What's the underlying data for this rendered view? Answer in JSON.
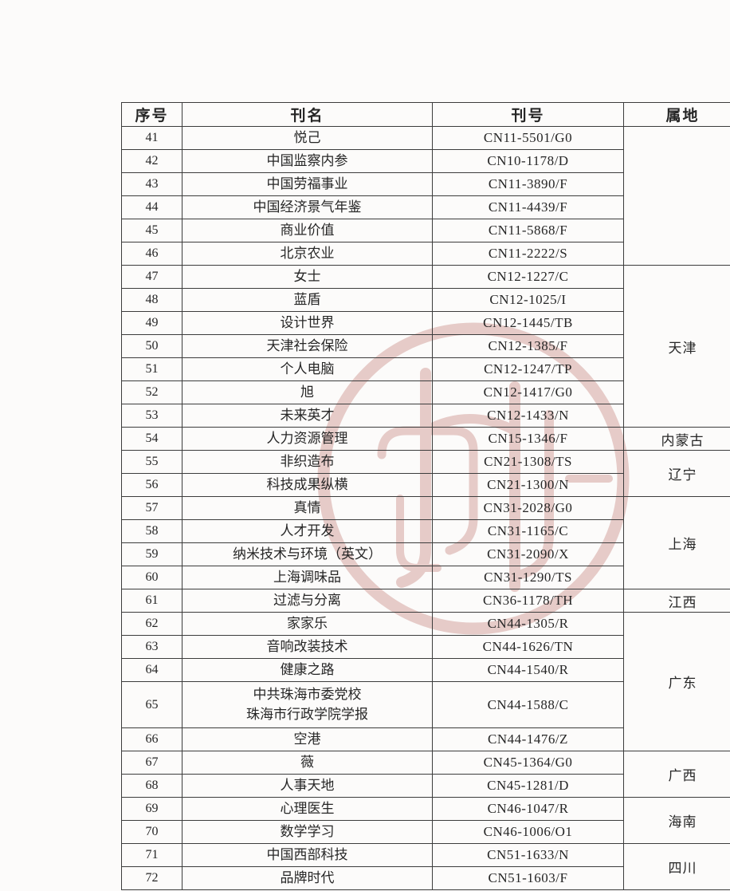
{
  "watermark": {
    "description": "faint red circular seal watermark",
    "color": "#a8463c"
  },
  "table": {
    "headers": [
      "序号",
      "刊名",
      "刊号",
      "属地"
    ],
    "region_groups": [
      {
        "label": "",
        "span": 6
      },
      {
        "label": "天津",
        "span": 7
      },
      {
        "label": "内蒙古",
        "span": 1
      },
      {
        "label": "辽宁",
        "span": 2
      },
      {
        "label": "上海",
        "span": 4
      },
      {
        "label": "江西",
        "span": 1
      },
      {
        "label": "广东",
        "span": 5
      },
      {
        "label": "广西",
        "span": 2
      },
      {
        "label": "海南",
        "span": 2
      },
      {
        "label": "四川",
        "span": 2
      }
    ],
    "rows": [
      {
        "no": "41",
        "name": "悦己",
        "code": "CN11-5501/G0",
        "group": 0
      },
      {
        "no": "42",
        "name": "中国监察内参",
        "code": "CN10-1178/D",
        "group": 0
      },
      {
        "no": "43",
        "name": "中国劳福事业",
        "code": "CN11-3890/F",
        "group": 0
      },
      {
        "no": "44",
        "name": "中国经济景气年鉴",
        "code": "CN11-4439/F",
        "group": 0
      },
      {
        "no": "45",
        "name": "商业价值",
        "code": "CN11-5868/F",
        "group": 0
      },
      {
        "no": "46",
        "name": "北京农业",
        "code": "CN11-2222/S",
        "group": 0
      },
      {
        "no": "47",
        "name": "女士",
        "code": "CN12-1227/C",
        "group": 1
      },
      {
        "no": "48",
        "name": "蓝盾",
        "code": "CN12-1025/I",
        "group": 1
      },
      {
        "no": "49",
        "name": "设计世界",
        "code": "CN12-1445/TB",
        "group": 1
      },
      {
        "no": "50",
        "name": "天津社会保险",
        "code": "CN12-1385/F",
        "group": 1
      },
      {
        "no": "51",
        "name": "个人电脑",
        "code": "CN12-1247/TP",
        "group": 1
      },
      {
        "no": "52",
        "name": "旭",
        "code": "CN12-1417/G0",
        "group": 1
      },
      {
        "no": "53",
        "name": "未来英才",
        "code": "CN12-1433/N",
        "group": 1
      },
      {
        "no": "54",
        "name": "人力资源管理",
        "code": "CN15-1346/F",
        "group": 2
      },
      {
        "no": "55",
        "name": "非织造布",
        "code": "CN21-1308/TS",
        "group": 3
      },
      {
        "no": "56",
        "name": "科技成果纵横",
        "code": "CN21-1300/N",
        "group": 3
      },
      {
        "no": "57",
        "name": "真情",
        "code": "CN31-2028/G0",
        "group": 4
      },
      {
        "no": "58",
        "name": "人才开发",
        "code": "CN31-1165/C",
        "group": 4
      },
      {
        "no": "59",
        "name": "纳米技术与环境（英文）",
        "code": "CN31-2090/X",
        "group": 4
      },
      {
        "no": "60",
        "name": "上海调味品",
        "code": "CN31-1290/TS",
        "group": 4
      },
      {
        "no": "61",
        "name": "过滤与分离",
        "code": "CN36-1178/TH",
        "group": 5
      },
      {
        "no": "62",
        "name": "家家乐",
        "code": "CN44-1305/R",
        "group": 6
      },
      {
        "no": "63",
        "name": "音响改装技术",
        "code": "CN44-1626/TN",
        "group": 6
      },
      {
        "no": "64",
        "name": "健康之路",
        "code": "CN44-1540/R",
        "group": 6
      },
      {
        "no": "65",
        "name": "中共珠海市委党校\n珠海市行政学院学报",
        "code": "CN44-1588/C",
        "group": 6,
        "tall": true
      },
      {
        "no": "66",
        "name": "空港",
        "code": "CN44-1476/Z",
        "group": 6
      },
      {
        "no": "67",
        "name": "薇",
        "code": "CN45-1364/G0",
        "group": 7
      },
      {
        "no": "68",
        "name": "人事天地",
        "code": "CN45-1281/D",
        "group": 7
      },
      {
        "no": "69",
        "name": "心理医生",
        "code": "CN46-1047/R",
        "group": 8
      },
      {
        "no": "70",
        "name": "数学学习",
        "code": "CN46-1006/O1",
        "group": 8
      },
      {
        "no": "71",
        "name": "中国西部科技",
        "code": "CN51-1633/N",
        "group": 9
      },
      {
        "no": "72",
        "name": "品牌时代",
        "code": "CN51-1603/F",
        "group": 9
      }
    ]
  }
}
